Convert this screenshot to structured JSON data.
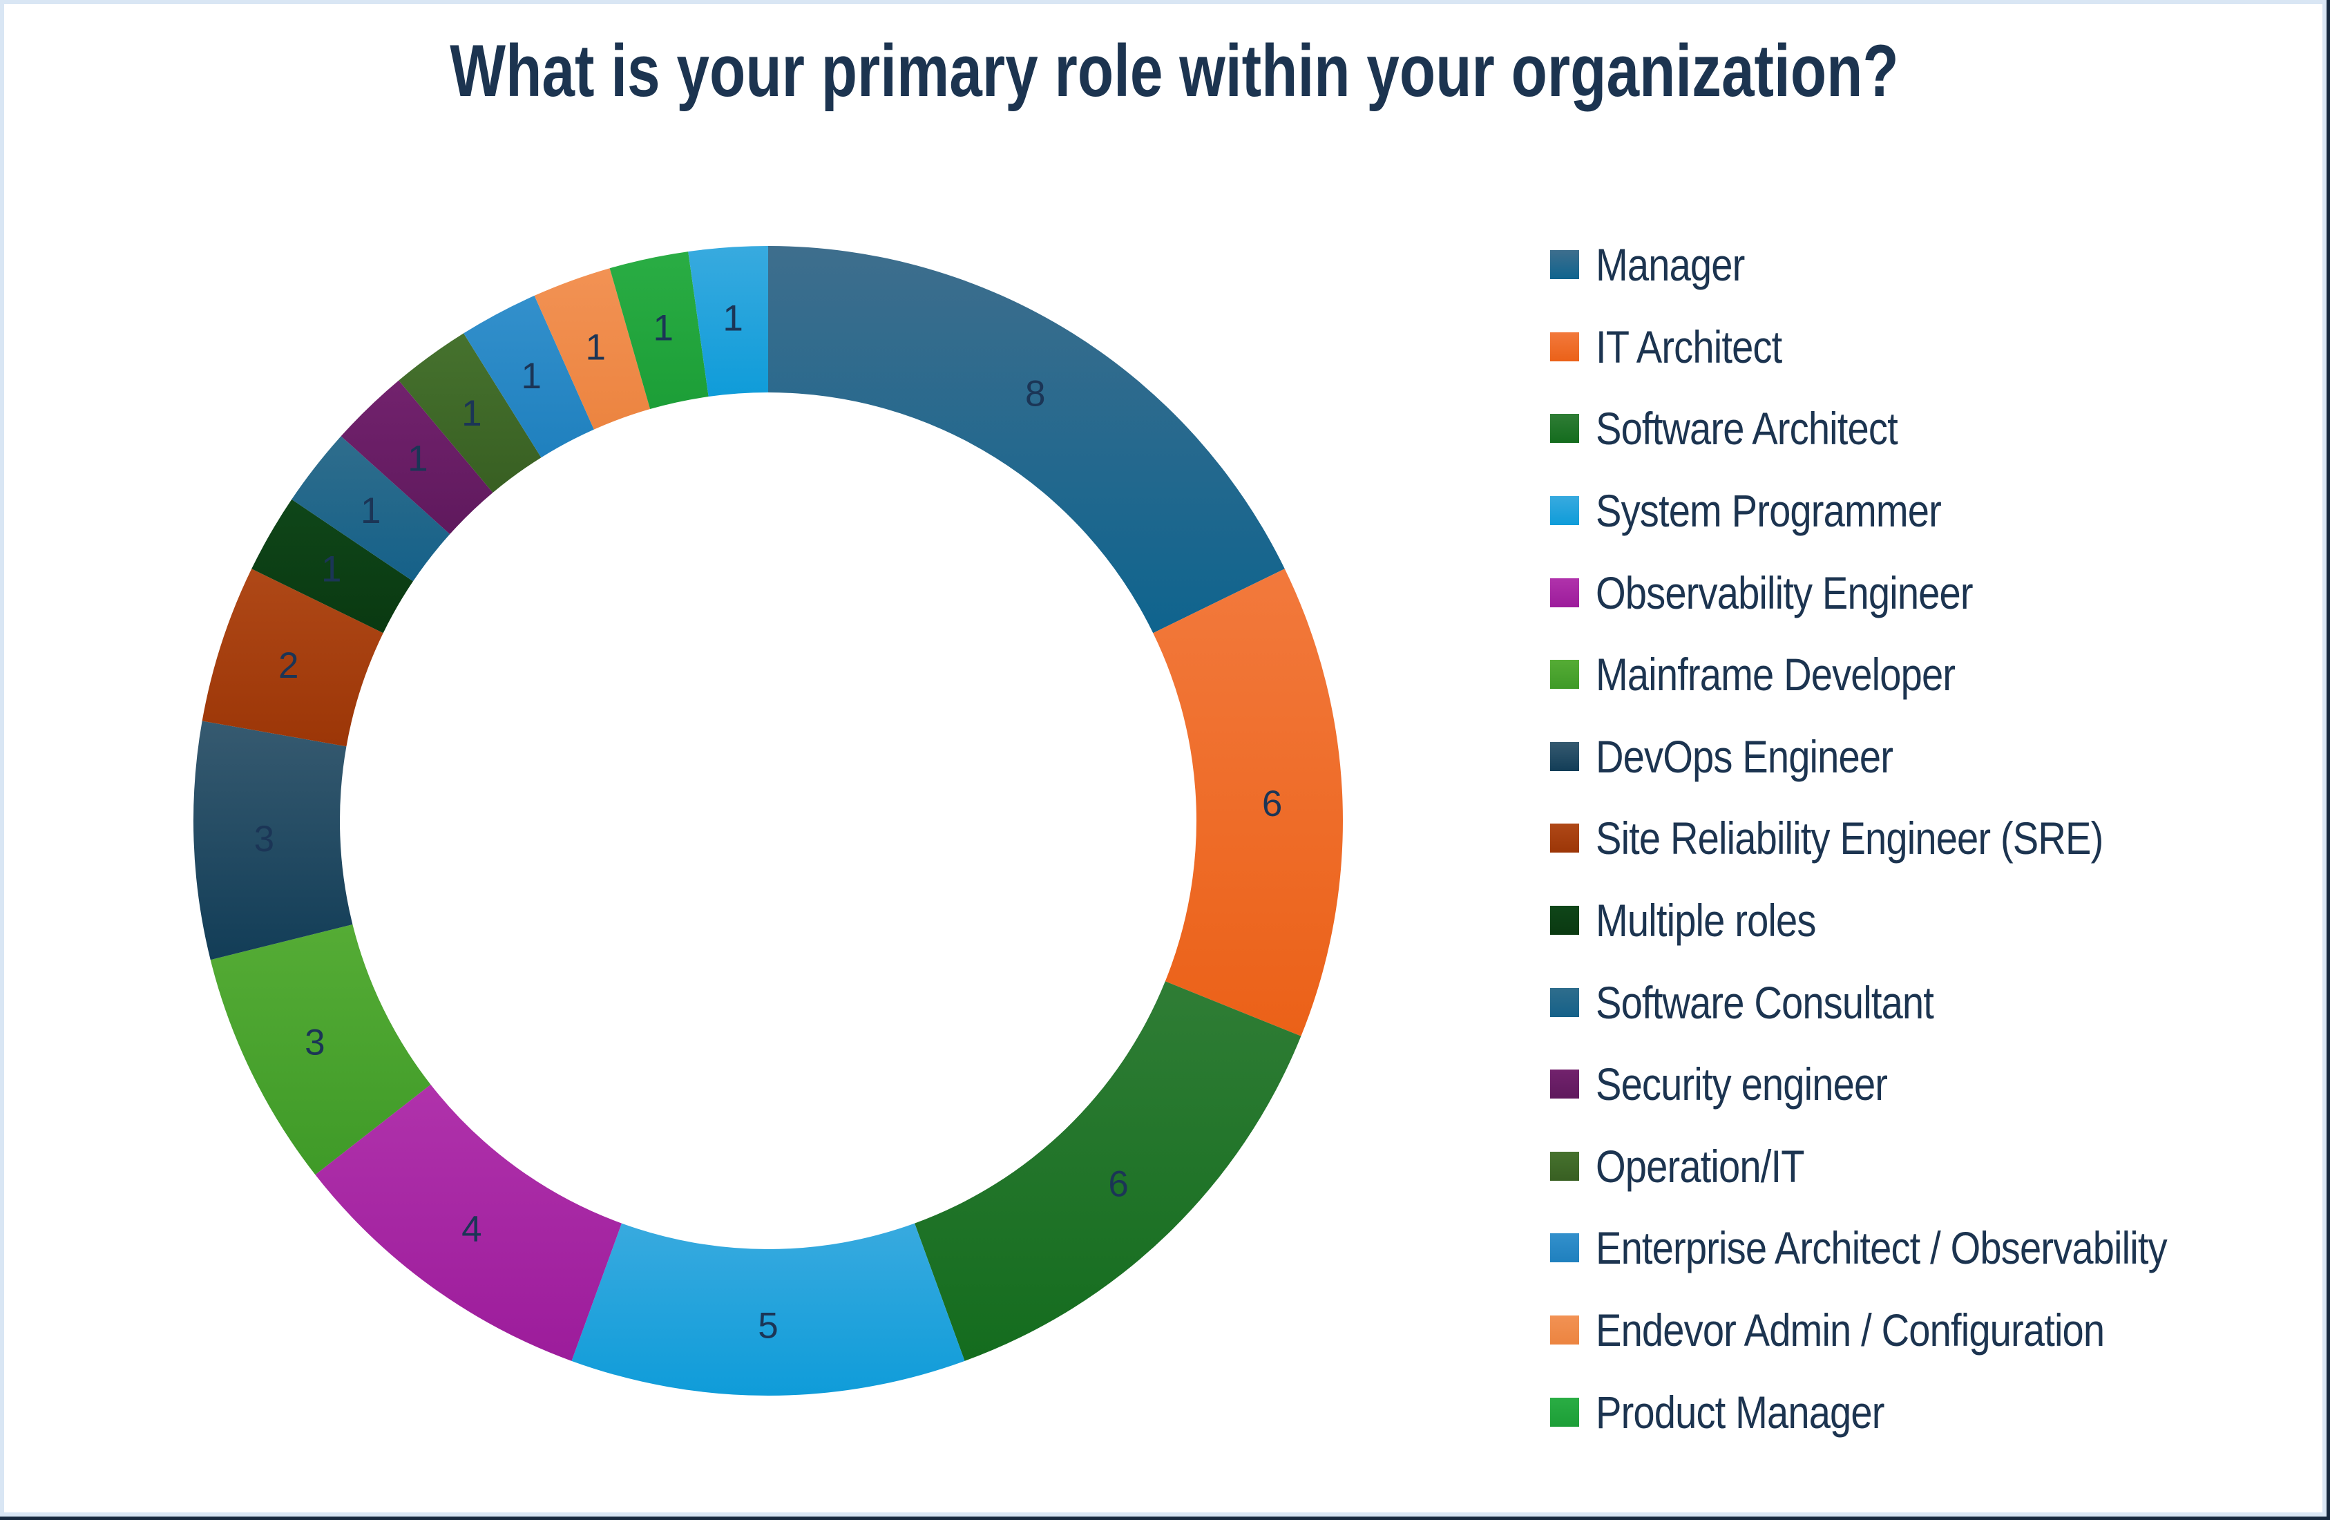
{
  "chart_data": {
    "type": "pie",
    "variant": "donut",
    "title": "What is your primary role within your organization?",
    "legend_position": "right",
    "start_angle_deg": 0,
    "direction": "clockwise",
    "total": 45,
    "grid": false,
    "slices": [
      {
        "label": "Manager",
        "value": 8,
        "color_top": "#3E6E8D",
        "color_bottom": "#0F648E",
        "in_legend": true
      },
      {
        "label": "IT Architect",
        "value": 6,
        "color_top": "#F2793C",
        "color_bottom": "#EB6118",
        "in_legend": true
      },
      {
        "label": "Software Architect",
        "value": 6,
        "color_top": "#2F7D35",
        "color_bottom": "#146C1E",
        "in_legend": true
      },
      {
        "label": "System Programmer",
        "value": 5,
        "color_top": "#38AADF",
        "color_bottom": "#0F9CD9",
        "in_legend": true
      },
      {
        "label": "Observability Engineer",
        "value": 4,
        "color_top": "#B032AB",
        "color_bottom": "#9C1C9B",
        "in_legend": true
      },
      {
        "label": "Mainframe Developer",
        "value": 3,
        "color_top": "#55AC35",
        "color_bottom": "#3F9A28",
        "in_legend": true
      },
      {
        "label": "DevOps Engineer",
        "value": 3,
        "color_top": "#365A70",
        "color_bottom": "#123D57",
        "in_legend": true
      },
      {
        "label": "Site Reliability Engineer (SRE)",
        "value": 2,
        "color_top": "#AF4817",
        "color_bottom": "#9C3607",
        "in_legend": true
      },
      {
        "label": "Multiple roles",
        "value": 1,
        "color_top": "#0F4619",
        "color_bottom": "#0A3911",
        "in_legend": true
      },
      {
        "label": "Software Consultant",
        "value": 1,
        "color_top": "#2F6D8C",
        "color_bottom": "#156189",
        "in_legend": true
      },
      {
        "label": "Security engineer",
        "value": 1,
        "color_top": "#72226D",
        "color_bottom": "#5F195D",
        "in_legend": true
      },
      {
        "label": "Operation/IT",
        "value": 1,
        "color_top": "#46722E",
        "color_bottom": "#385F22",
        "in_legend": true
      },
      {
        "label": "Enterprise Architect / Observability",
        "value": 1,
        "color_top": "#3390CC",
        "color_bottom": "#1F80BE",
        "in_legend": true
      },
      {
        "label": "Endevor Admin / Configuration",
        "value": 1,
        "color_top": "#F29254",
        "color_bottom": "#EC8440",
        "in_legend": true
      },
      {
        "label": "Product Manager",
        "value": 1,
        "color_top": "#2AAD44",
        "color_bottom": "#1C9E37",
        "in_legend": true
      },
      {
        "label": "",
        "value": 1,
        "color_top": "#38AADF",
        "color_bottom": "#0F9CD9",
        "in_legend": false
      }
    ],
    "colors": {
      "title_text": "#1C3450",
      "legend_text": "#1C3450",
      "data_label_text": "#1B3556",
      "frame_inner": "#D9E6F4",
      "frame_edge": "#16283E",
      "background": "#FFFFFF"
    }
  }
}
